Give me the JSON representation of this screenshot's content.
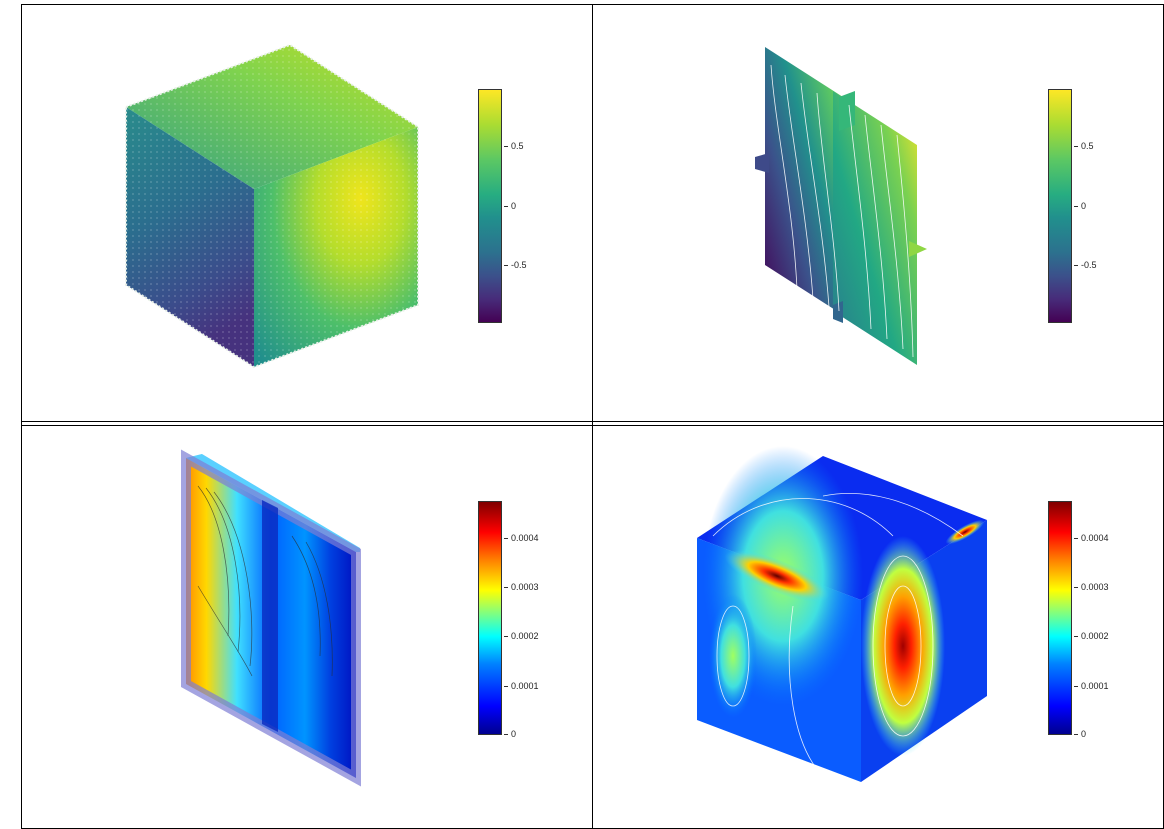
{
  "panels": [
    {
      "id": "top-left",
      "colorbar": {
        "colormap": "viridis",
        "ticks": [
          "0.5",
          "0",
          "-0.5"
        ]
      }
    },
    {
      "id": "top-right",
      "colorbar": {
        "colormap": "viridis",
        "ticks": [
          "0.5",
          "0",
          "-0.5"
        ]
      }
    },
    {
      "id": "bottom-left",
      "colorbar": {
        "colormap": "jet",
        "ticks": [
          "0.0004",
          "0.0003",
          "0.0002",
          "0.0001",
          "0"
        ]
      }
    },
    {
      "id": "bottom-right",
      "colorbar": {
        "colormap": "jet",
        "ticks": [
          "0.0004",
          "0.0003",
          "0.0002",
          "0.0001",
          "0"
        ]
      }
    }
  ]
}
